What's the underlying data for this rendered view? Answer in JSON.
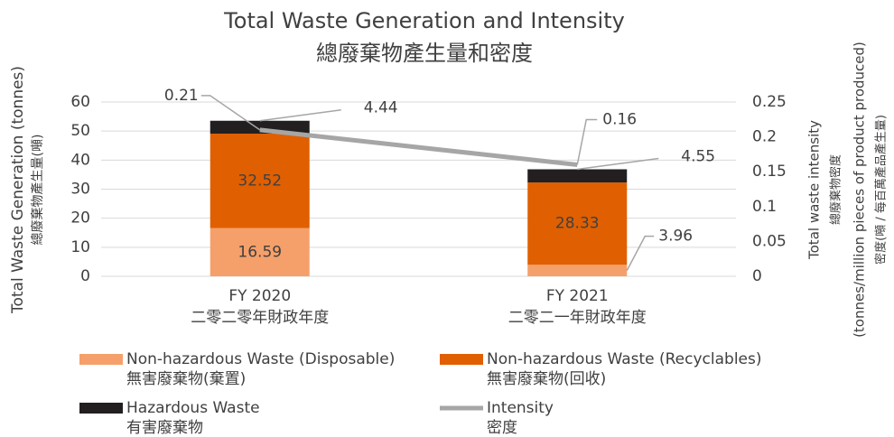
{
  "chart_data": {
    "type": "bar",
    "title": "Total Waste Generation and Intensity",
    "title_zh": "總廢棄物產生量和密度",
    "ylabel": "Total Waste Generation (tonnes)",
    "ylabel_zh": "總廢棄物產生量(噸)",
    "y2label": [
      "Total waste intensity",
      "總廢棄物密度",
      "(tonnes/million pieces of product produced)",
      "密度(噸 / 每百萬產品產生量)"
    ],
    "categories": [
      "FY 2020",
      "FY 2021"
    ],
    "categories_zh": [
      "二零二零年財政年度",
      "二零二一年財政年度"
    ],
    "series": [
      {
        "name": "Non-hazardous Waste (Disposable)",
        "name_zh": "無害廢棄物(棄置)",
        "color": "#f5a06a",
        "values": [
          16.59,
          3.96
        ]
      },
      {
        "name": "Non-hazardous Waste (Recyclables)",
        "name_zh": "無害廢棄物(回收)",
        "color": "#e05f00",
        "values": [
          32.52,
          28.33
        ]
      },
      {
        "name": "Hazardous Waste",
        "name_zh": "有害廢棄物",
        "color": "#231f20",
        "values": [
          4.44,
          4.55
        ]
      },
      {
        "name": "Intensity",
        "name_zh": "密度",
        "color": "#a6a6a6",
        "values": [
          0.21,
          0.16
        ],
        "axis": "y2",
        "type": "line"
      }
    ],
    "ylim": [
      0,
      60
    ],
    "yticks": [
      0,
      10,
      20,
      30,
      40,
      50,
      60
    ],
    "y2lim": [
      0,
      0.25
    ],
    "y2ticks": [
      0,
      0.05,
      0.1,
      0.15,
      0.2,
      0.25
    ],
    "grid": true
  }
}
